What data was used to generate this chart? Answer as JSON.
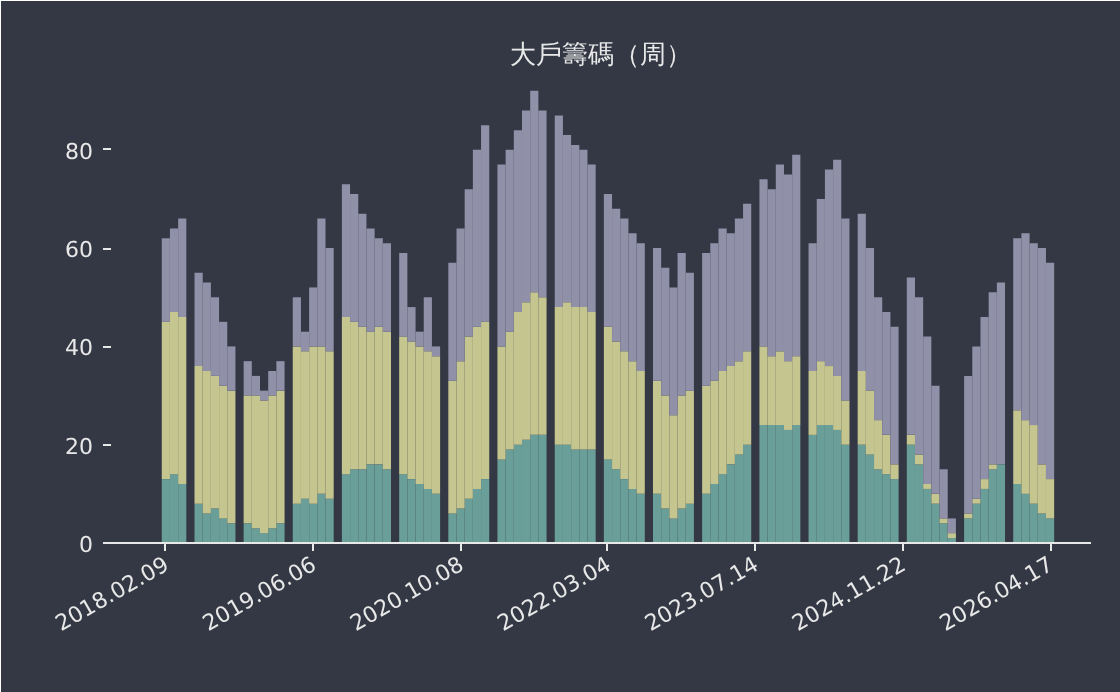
{
  "chart_data": {
    "type": "bar",
    "stacked": true,
    "title": "大戶籌碼（周）",
    "categories": [
      "2018.02.09",
      null,
      null,
      null,
      null,
      null,
      null,
      null,
      null,
      null,
      null,
      null,
      null,
      null,
      null,
      null,
      null,
      null,
      "2019.06.06",
      null,
      null,
      null,
      null,
      null,
      null,
      null,
      null,
      null,
      null,
      null,
      null,
      null,
      null,
      null,
      null,
      null,
      "2020.10.08",
      null,
      null,
      null,
      null,
      null,
      null,
      null,
      null,
      null,
      null,
      null,
      null,
      null,
      null,
      null,
      null,
      null,
      "2022.03.04",
      null,
      null,
      null,
      null,
      null,
      null,
      null,
      null,
      null,
      null,
      null,
      null,
      null,
      null,
      null,
      null,
      null,
      "2023.07.14",
      null,
      null,
      null,
      null,
      null,
      null,
      null,
      null,
      null,
      null,
      null,
      null,
      null,
      null,
      null,
      null,
      null,
      "2024.11.22",
      null,
      null,
      null,
      null,
      null,
      null,
      null,
      null,
      null,
      null,
      null,
      null,
      null,
      null,
      null,
      null,
      null,
      "2026.04.17"
    ],
    "series": [
      {
        "color": "#6a9e98",
        "values": [
          13,
          14,
          12,
          null,
          8,
          6,
          7,
          5,
          4,
          null,
          4,
          3,
          2,
          3,
          4,
          null,
          8,
          9,
          8,
          10,
          9,
          null,
          14,
          15,
          15,
          16,
          16,
          15,
          null,
          14,
          13,
          12,
          11,
          10,
          null,
          6,
          7,
          9,
          11,
          13,
          null,
          17,
          19,
          20,
          21,
          22,
          22,
          null,
          20,
          20,
          19,
          19,
          19,
          null,
          17,
          15,
          13,
          11,
          10,
          null,
          10,
          7,
          5,
          7,
          8,
          null,
          10,
          12,
          14,
          16,
          18,
          20,
          null,
          24,
          24,
          24,
          23,
          24,
          null,
          22,
          24,
          24,
          23,
          20,
          null,
          20,
          18,
          15,
          14,
          13,
          null,
          20,
          16,
          11,
          8,
          4,
          1,
          null,
          5,
          8,
          11,
          15,
          16,
          null,
          12,
          10,
          8,
          6,
          5
        ]
      },
      {
        "color": "#c5c58f",
        "values": [
          32,
          33,
          34,
          null,
          28,
          29,
          27,
          27,
          27,
          null,
          26,
          27,
          27,
          27,
          27,
          null,
          32,
          30,
          32,
          30,
          30,
          null,
          32,
          30,
          29,
          27,
          28,
          28,
          null,
          28,
          28,
          28,
          28,
          28,
          null,
          27,
          30,
          33,
          33,
          32,
          null,
          23,
          24,
          27,
          28,
          29,
          28,
          null,
          28,
          29,
          29,
          29,
          28,
          null,
          27,
          26,
          26,
          26,
          25,
          null,
          23,
          23,
          21,
          23,
          23,
          null,
          22,
          21,
          21,
          20,
          19,
          19,
          null,
          16,
          14,
          15,
          14,
          14,
          null,
          13,
          13,
          12,
          11,
          9,
          null,
          15,
          13,
          10,
          8,
          3,
          null,
          2,
          2,
          1,
          2,
          1,
          1,
          null,
          1,
          1,
          2,
          1,
          0,
          null,
          15,
          15,
          16,
          10,
          8
        ]
      },
      {
        "color": "#9090a8",
        "values": [
          17,
          17,
          20,
          null,
          19,
          18,
          16,
          13,
          9,
          null,
          7,
          4,
          2,
          5,
          6,
          null,
          10,
          4,
          12,
          26,
          21,
          null,
          27,
          26,
          23,
          21,
          18,
          18,
          null,
          17,
          7,
          3,
          11,
          2,
          null,
          24,
          27,
          30,
          36,
          40,
          null,
          37,
          37,
          37,
          39,
          41,
          38,
          null,
          39,
          34,
          33,
          32,
          30,
          null,
          27,
          27,
          27,
          26,
          26,
          null,
          27,
          26,
          26,
          29,
          24,
          null,
          27,
          28,
          29,
          27,
          29,
          30,
          null,
          34,
          34,
          38,
          38,
          41,
          null,
          26,
          33,
          40,
          44,
          37,
          null,
          32,
          29,
          25,
          25,
          28,
          null,
          32,
          32,
          30,
          22,
          10,
          3,
          null,
          28,
          31,
          33,
          35,
          37,
          null,
          35,
          38,
          37,
          44,
          44
        ]
      }
    ],
    "ylim": [
      0,
      94
    ],
    "yticks": [
      0,
      20,
      40,
      60,
      80
    ],
    "grid": false
  }
}
